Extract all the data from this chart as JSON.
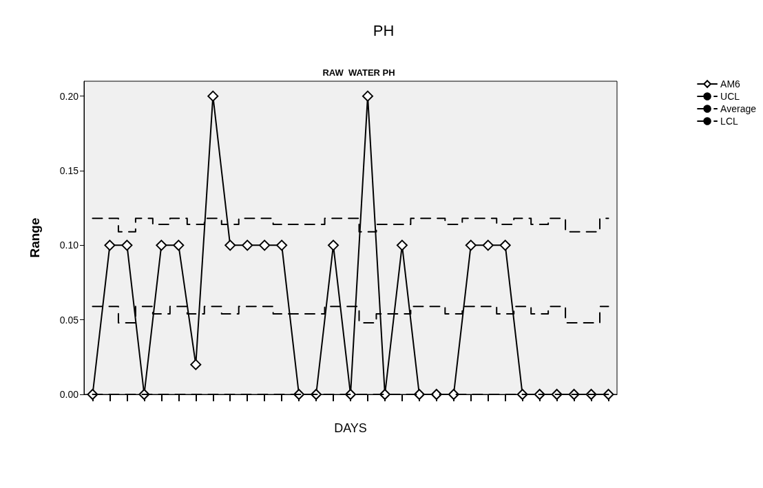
{
  "chart_data": {
    "type": "line",
    "title": "PH",
    "subtitle": "RAW  WATER PH",
    "xlabel": "DAYS",
    "ylabel": "Range",
    "categories": [
      null,
      null,
      null,
      null,
      null,
      null,
      null,
      null,
      null,
      null,
      null,
      null,
      null,
      null,
      null,
      null,
      null,
      null,
      null,
      null,
      null,
      null,
      null,
      null,
      null,
      null,
      null,
      null,
      null,
      null,
      null
    ],
    "series": [
      {
        "name": "AM6",
        "color": "#000000",
        "marker": "diamond",
        "line_style": "solid",
        "values": [
          0,
          0.1,
          0.1,
          0,
          0.1,
          0.1,
          0.02,
          0.2,
          0.1,
          0.1,
          0.1,
          0.1,
          0,
          0,
          0.1,
          0,
          0.2,
          0,
          0.1,
          0,
          0,
          0,
          0.1,
          0.1,
          0.1,
          0,
          0,
          0,
          0,
          0,
          0
        ]
      },
      {
        "name": "UCL",
        "type": "step",
        "color": "#000000",
        "line_style": "dashed",
        "values": [
          0.118,
          0.118,
          0.109,
          0.118,
          0.114,
          0.118,
          0.114,
          0.118,
          0.114,
          0.118,
          0.118,
          0.114,
          0.114,
          0.114,
          0.118,
          0.118,
          0.109,
          0.114,
          0.114,
          0.118,
          0.118,
          0.114,
          0.118,
          0.118,
          0.114,
          0.118,
          0.114,
          0.118,
          0.109,
          0.109,
          0.118
        ]
      },
      {
        "name": "Average",
        "type": "step",
        "color": "#000000",
        "line_style": "dashed",
        "values": [
          0.059,
          0.059,
          0.048,
          0.059,
          0.054,
          0.059,
          0.054,
          0.059,
          0.054,
          0.059,
          0.059,
          0.054,
          0.054,
          0.054,
          0.059,
          0.059,
          0.048,
          0.054,
          0.054,
          0.059,
          0.059,
          0.054,
          0.059,
          0.059,
          0.054,
          0.059,
          0.054,
          0.059,
          0.048,
          0.048,
          0.059
        ]
      },
      {
        "name": "LCL",
        "type": "step",
        "color": "#000000",
        "line_style": "dashed",
        "values": [
          0,
          0,
          0,
          0,
          0,
          0,
          0,
          0,
          0,
          0,
          0,
          0,
          0,
          0,
          0,
          0,
          0,
          0,
          0,
          0,
          0,
          0,
          0,
          0,
          0,
          0,
          0,
          0,
          0,
          0,
          0
        ]
      }
    ],
    "ylim": [
      0,
      0.21
    ],
    "yticks": [
      {
        "value": 0,
        "label": "0.00"
      },
      {
        "value": 0.05,
        "label": "0.05"
      },
      {
        "value": 0.1,
        "label": "0.10"
      },
      {
        "value": 0.15,
        "label": "0.15"
      },
      {
        "value": 0.2,
        "label": "0.20"
      }
    ],
    "grid": false,
    "legend": "top right"
  }
}
